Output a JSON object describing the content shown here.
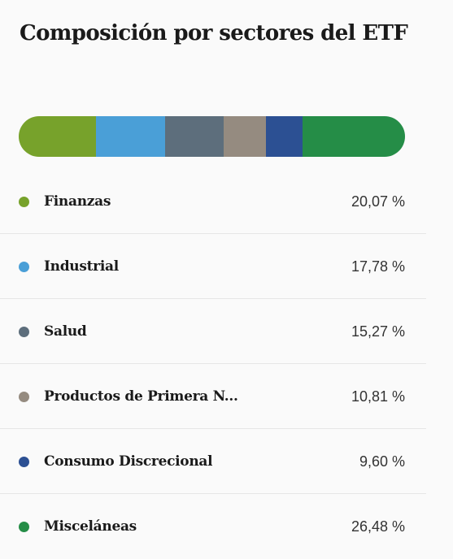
{
  "title": "Composición por sectores del ETF",
  "sectors": [
    {
      "name": "Finanzas",
      "percent_label": "20,07 %",
      "value": 20.07,
      "color": "#77a22b"
    },
    {
      "name": "Industrial",
      "percent_label": "17,78 %",
      "value": 17.78,
      "color": "#4a9fd7"
    },
    {
      "name": "Salud",
      "percent_label": "15,27 %",
      "value": 15.27,
      "color": "#5d6e7c"
    },
    {
      "name": "Productos de Primera N...",
      "percent_label": "10,81 %",
      "value": 10.81,
      "color": "#958b80"
    },
    {
      "name": "Consumo Discrecional",
      "percent_label": "9,60 %",
      "value": 9.6,
      "color": "#2c5093"
    },
    {
      "name": "Misceláneas",
      "percent_label": "26,48 %",
      "value": 26.48,
      "color": "#258d47"
    }
  ]
}
